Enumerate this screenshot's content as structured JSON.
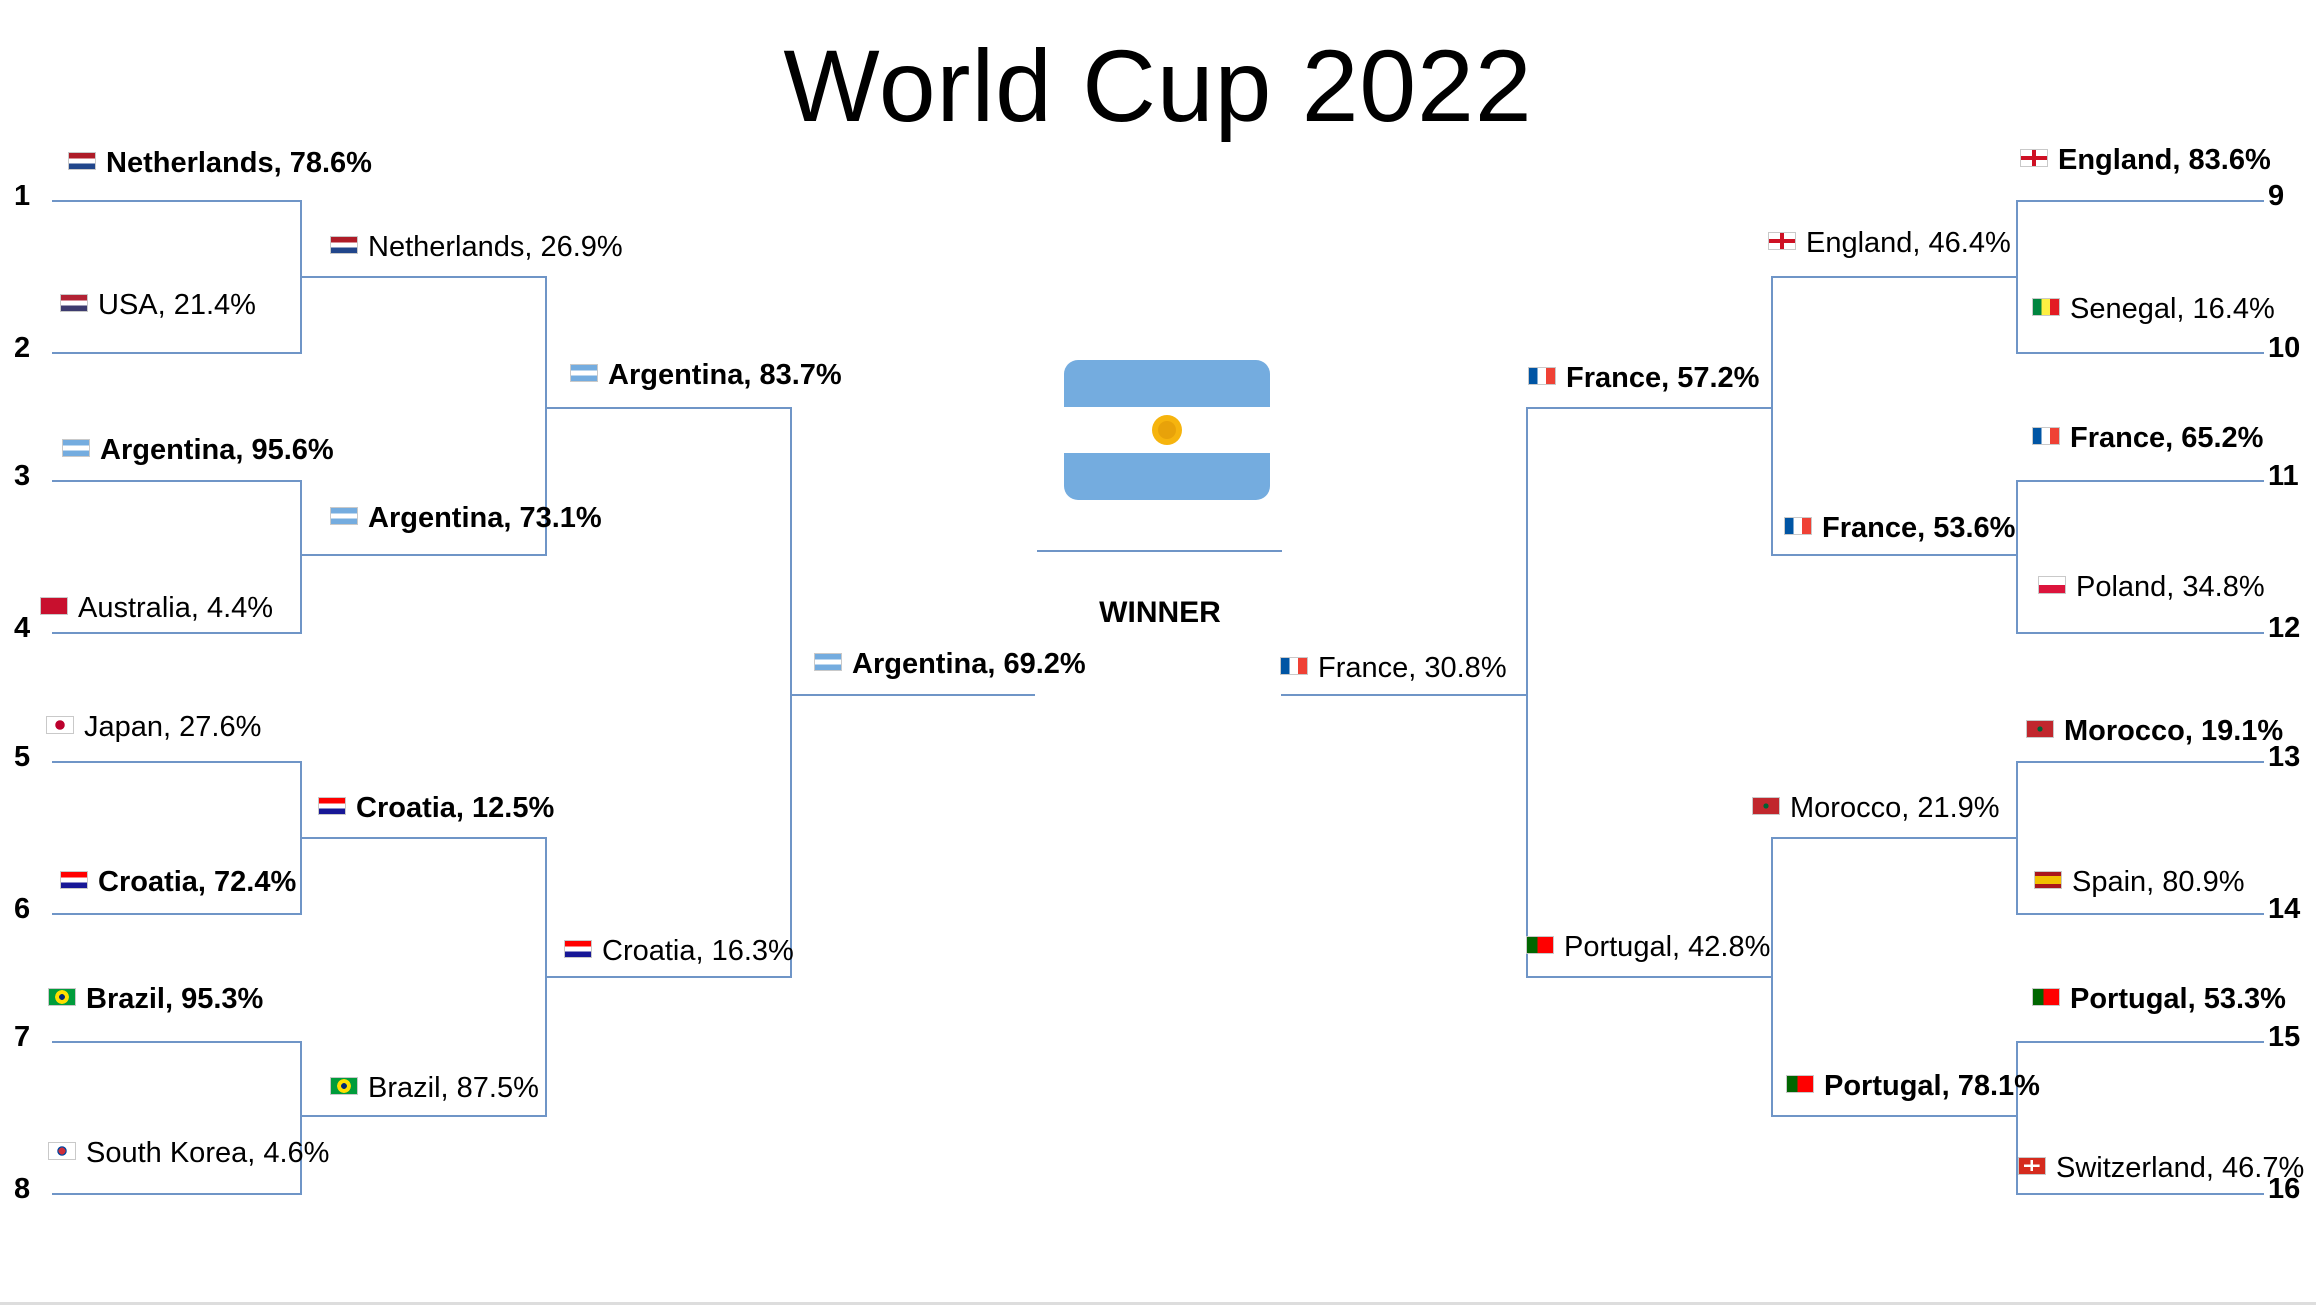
{
  "title": "World Cup 2022",
  "winner_label": "WINNER",
  "winner_flag": "argentina-flag",
  "seeds_left": [
    "1",
    "2",
    "3",
    "4",
    "5",
    "6",
    "7",
    "8"
  ],
  "seeds_right": [
    "9",
    "10",
    "11",
    "12",
    "13",
    "14",
    "15",
    "16"
  ],
  "left": {
    "r1": [
      {
        "text": "Netherlands, 78.6%",
        "flag": "netherlands",
        "bold": true
      },
      {
        "text": "USA, 21.4%",
        "flag": "usa",
        "bold": false
      },
      {
        "text": "Argentina, 95.6%",
        "flag": "argentina",
        "bold": true
      },
      {
        "text": "Australia, 4.4%",
        "flag": "australia",
        "bold": false
      },
      {
        "text": "Japan, 27.6%",
        "flag": "japan",
        "bold": false
      },
      {
        "text": "Croatia, 72.4%",
        "flag": "croatia",
        "bold": true
      },
      {
        "text": "Brazil, 95.3%",
        "flag": "brazil",
        "bold": true
      },
      {
        "text": "South Korea, 4.6%",
        "flag": "south-korea",
        "bold": false
      }
    ],
    "r2": [
      {
        "text": "Netherlands, 26.9%",
        "flag": "netherlands",
        "bold": false
      },
      {
        "text": "Argentina, 73.1%",
        "flag": "argentina",
        "bold": true
      },
      {
        "text": "Croatia, 12.5%",
        "flag": "croatia",
        "bold": true
      },
      {
        "text": "Brazil, 87.5%",
        "flag": "brazil",
        "bold": false
      }
    ],
    "r3": [
      {
        "text": "Argentina, 83.7%",
        "flag": "argentina",
        "bold": true
      },
      {
        "text": "Croatia, 16.3%",
        "flag": "croatia",
        "bold": false
      }
    ],
    "r4": [
      {
        "text": "Argentina, 69.2%",
        "flag": "argentina",
        "bold": true
      }
    ]
  },
  "right": {
    "r1": [
      {
        "text": "England, 83.6%",
        "flag": "england",
        "bold": true
      },
      {
        "text": "Senegal, 16.4%",
        "flag": "senegal",
        "bold": false
      },
      {
        "text": "France, 65.2%",
        "flag": "france",
        "bold": true
      },
      {
        "text": "Poland, 34.8%",
        "flag": "poland",
        "bold": false
      },
      {
        "text": "Morocco, 19.1%",
        "flag": "morocco",
        "bold": true
      },
      {
        "text": "Spain, 80.9%",
        "flag": "spain",
        "bold": false
      },
      {
        "text": "Portugal, 53.3%",
        "flag": "portugal",
        "bold": true
      },
      {
        "text": "Switzerland, 46.7%",
        "flag": "switzerland",
        "bold": false
      }
    ],
    "r2": [
      {
        "text": "England, 46.4%",
        "flag": "england",
        "bold": false
      },
      {
        "text": "France, 53.6%",
        "flag": "france",
        "bold": true
      },
      {
        "text": "Morocco, 21.9%",
        "flag": "morocco",
        "bold": false
      },
      {
        "text": "Portugal, 78.1%",
        "flag": "portugal",
        "bold": true
      }
    ],
    "r3": [
      {
        "text": "France, 57.2%",
        "flag": "france",
        "bold": true
      },
      {
        "text": "Portugal, 42.8%",
        "flag": "portugal",
        "bold": false
      }
    ],
    "r4": [
      {
        "text": "France, 30.8%",
        "flag": "france",
        "bold": false
      }
    ]
  },
  "flag_colors": {
    "netherlands": [
      "#AE1C28",
      "#FFFFFF",
      "#21468B"
    ],
    "usa": [
      "#B22234",
      "#FFFFFF",
      "#3C3B6E"
    ],
    "argentina": [
      "#74ACDF",
      "#FFFFFF",
      "#74ACDF"
    ],
    "australia": [
      "#012169",
      "#012169",
      "#012169"
    ],
    "japan": [
      "#FFFFFF",
      "#BC002D",
      "#FFFFFF"
    ],
    "croatia": [
      "#FF0000",
      "#FFFFFF",
      "#171796"
    ],
    "brazil": [
      "#009C3B",
      "#FFDF00",
      "#002776"
    ],
    "south-korea": [
      "#FFFFFF",
      "#CD2E3A",
      "#0047A0"
    ],
    "england": [
      "#FFFFFF",
      "#CE1124",
      "#FFFFFF"
    ],
    "senegal": [
      "#00853F",
      "#FDEF42",
      "#E31B23"
    ],
    "france": [
      "#0055A4",
      "#FFFFFF",
      "#EF4135"
    ],
    "poland": [
      "#FFFFFF",
      "#FFFFFF",
      "#DC143C"
    ],
    "morocco": [
      "#C1272D",
      "#006233",
      "#C1272D"
    ],
    "spain": [
      "#AA151B",
      "#F1BF00",
      "#AA151B"
    ],
    "portugal": [
      "#006600",
      "#FF0000",
      "#FF0000"
    ],
    "switzerland": [
      "#D52B1E",
      "#FFFFFF",
      "#D52B1E"
    ]
  },
  "line_color": "#6F95C7"
}
